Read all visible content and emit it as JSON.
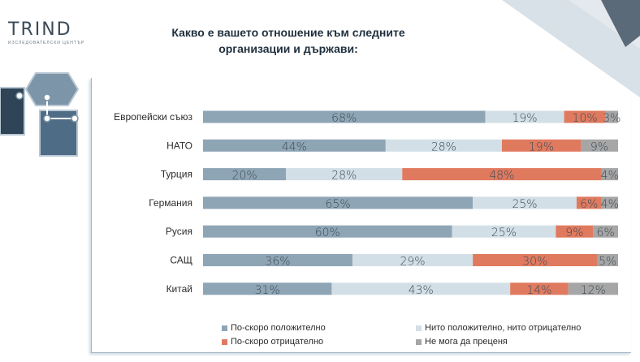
{
  "logo": {
    "word": "TRIND",
    "sub": "ИЗСЛЕДОВАТЕЛСКИ ЦЕНТЪР"
  },
  "chart_data": {
    "type": "bar",
    "orientation": "horizontal",
    "stacked": true,
    "title": "Какво е вашето отношение към следните организации и държави:",
    "categories": [
      "Европейски съюз",
      "НАТО",
      "Турция",
      "Германия",
      "Русия",
      "САЩ",
      "Китай"
    ],
    "series": [
      {
        "name": "По-скоро положително",
        "values": [
          68,
          44,
          20,
          65,
          60,
          36,
          31
        ],
        "color": "#8ea5b6"
      },
      {
        "name": "Нито положително, нито отрицателно",
        "values": [
          19,
          28,
          28,
          25,
          25,
          29,
          43
        ],
        "color": "#d3dfe6"
      },
      {
        "name": "По-скоро отрицателно",
        "values": [
          10,
          19,
          48,
          6,
          9,
          30,
          14
        ],
        "color": "#e07a5f"
      },
      {
        "name": "Не мога да преценя",
        "values": [
          3,
          9,
          4,
          4,
          6,
          5,
          12
        ],
        "color": "#a6a6a6"
      }
    ],
    "value_suffix": "%",
    "xlim": [
      0,
      100
    ],
    "legend_position": "bottom",
    "grid": false
  }
}
